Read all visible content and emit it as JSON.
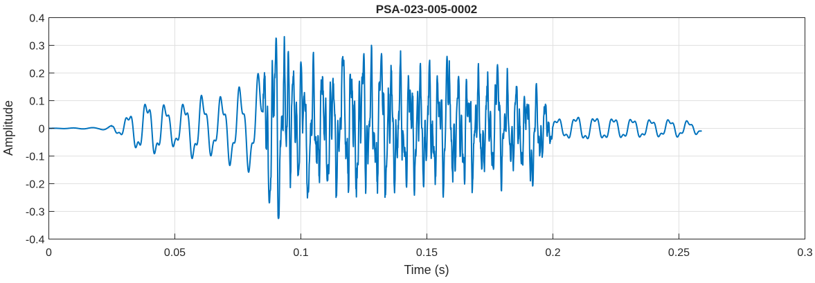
{
  "chart_data": {
    "type": "line",
    "title": "PSA-023-005-0002",
    "xlabel": "Time (s)",
    "ylabel": "Amplitude",
    "xlim": [
      0,
      0.3
    ],
    "ylim": [
      -0.4,
      0.4
    ],
    "x_ticks": [
      0,
      0.05,
      0.1,
      0.15,
      0.2,
      0.25,
      0.3
    ],
    "x_tick_labels": [
      "0",
      "0.05",
      "0.1",
      "0.15",
      "0.2",
      "0.25",
      "0.3"
    ],
    "y_ticks": [
      -0.4,
      -0.3,
      -0.2,
      -0.1,
      0,
      0.1,
      0.2,
      0.3,
      0.4
    ],
    "y_tick_labels": [
      "-0.4",
      "-0.3",
      "-0.2",
      "-0.1",
      "0",
      "0.1",
      "0.2",
      "0.3",
      "0.4"
    ],
    "grid": true,
    "series": [
      {
        "color": "#0072BD",
        "x_start": 0,
        "x_end": 0.259,
        "envelope": [
          [
            0.0,
            0.0
          ],
          [
            0.02,
            0.003
          ],
          [
            0.025,
            0.01
          ],
          [
            0.03,
            0.04
          ],
          [
            0.035,
            0.09
          ],
          [
            0.04,
            0.11
          ],
          [
            0.045,
            0.1
          ],
          [
            0.05,
            0.07
          ],
          [
            0.055,
            0.11
          ],
          [
            0.06,
            0.13
          ],
          [
            0.065,
            0.1
          ],
          [
            0.07,
            0.13
          ],
          [
            0.075,
            0.15
          ],
          [
            0.08,
            0.16
          ],
          [
            0.085,
            0.22
          ],
          [
            0.09,
            0.3
          ],
          [
            0.095,
            0.26
          ],
          [
            0.1,
            0.22
          ],
          [
            0.105,
            0.24
          ],
          [
            0.11,
            0.25
          ],
          [
            0.12,
            0.26
          ],
          [
            0.13,
            0.25
          ],
          [
            0.14,
            0.24
          ],
          [
            0.15,
            0.23
          ],
          [
            0.16,
            0.22
          ],
          [
            0.17,
            0.21
          ],
          [
            0.18,
            0.19
          ],
          [
            0.19,
            0.17
          ],
          [
            0.195,
            0.15
          ],
          [
            0.2,
            0.04
          ],
          [
            0.205,
            0.04
          ],
          [
            0.21,
            0.05
          ],
          [
            0.22,
            0.045
          ],
          [
            0.23,
            0.04
          ],
          [
            0.24,
            0.035
          ],
          [
            0.25,
            0.035
          ],
          [
            0.259,
            0.02
          ]
        ],
        "peaks": [
          [
            0.0902,
            0.33
          ],
          [
            0.0912,
            -0.325
          ],
          [
            0.0875,
            -0.27
          ],
          [
            0.095,
            0.28
          ],
          [
            0.1,
            0.24
          ],
          [
            0.103,
            -0.23
          ],
          [
            0.125,
            0.27
          ],
          [
            0.132,
            0.27
          ],
          [
            0.158,
            0.26
          ],
          [
            0.117,
            0.25
          ],
          [
            0.178,
            0.23
          ],
          [
            0.192,
            -0.21
          ]
        ]
      }
    ]
  }
}
